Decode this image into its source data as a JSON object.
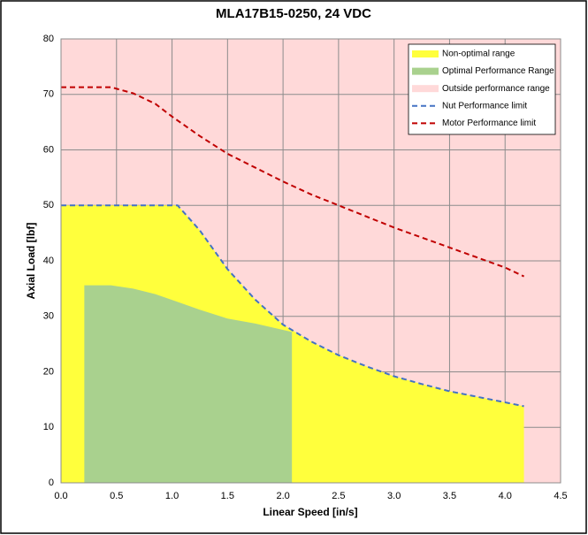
{
  "chart_data": {
    "type": "area",
    "title": "MLA17B15-0250, 24 VDC",
    "x_label": "Linear Speed [in/s]",
    "y_label": "Axial Load [lbf]",
    "xlim": [
      0,
      4.5
    ],
    "ylim": [
      0,
      80
    ],
    "xticks": [
      {
        "value": 0,
        "label": "0.0"
      },
      0.5,
      {
        "value": 1,
        "label": "1.0"
      },
      1.5,
      {
        "value": 2,
        "label": "2.0"
      },
      2.5,
      {
        "value": 3,
        "label": "3.0"
      },
      3.5,
      {
        "value": 4,
        "label": "4.0"
      },
      4.5
    ],
    "yticks": [
      0,
      10,
      20,
      30,
      40,
      50,
      60,
      70,
      80
    ],
    "grid": true,
    "legend": "top-right",
    "series": [
      {
        "name": "Non-optimal range",
        "kind": "area",
        "color": "#ffff3c",
        "x": [
          0,
          1.05,
          1.25,
          1.5,
          1.75,
          2.0,
          2.25,
          2.5,
          2.75,
          3.0,
          3.25,
          3.5,
          3.75,
          4.0,
          4.17
        ],
        "values": [
          50,
          50,
          45.5,
          38.5,
          33,
          28.5,
          25.5,
          23,
          21,
          19.2,
          17.8,
          16.5,
          15.5,
          14.5,
          13.8
        ]
      },
      {
        "name": "Optimal Performance Range",
        "kind": "area",
        "color": "#a9d18e",
        "x": [
          0.21,
          0.45,
          0.65,
          0.85,
          1.05,
          1.25,
          1.5,
          1.75,
          2.08
        ],
        "values": [
          35.6,
          35.6,
          35,
          34,
          32.6,
          31.2,
          29.6,
          28.7,
          27.2
        ]
      },
      {
        "name": "Outside performance range",
        "kind": "area",
        "color": "#ffd9d9",
        "x": [
          0,
          4.5
        ],
        "values": [
          80,
          80
        ]
      },
      {
        "name": "Nut Performance limit",
        "kind": "line",
        "color": "#4472c4",
        "dash": "6 4",
        "x": [
          0,
          1.05,
          1.25,
          1.5,
          1.75,
          2.0,
          2.25,
          2.5,
          2.75,
          3.0,
          3.25,
          3.5,
          3.75,
          4.0,
          4.17
        ],
        "values": [
          50,
          50,
          45.5,
          38.5,
          33,
          28.5,
          25.5,
          23,
          21,
          19.2,
          17.8,
          16.5,
          15.5,
          14.5,
          13.8
        ]
      },
      {
        "name": "Motor Performance limit",
        "kind": "line",
        "color": "#c00000",
        "dash": "6 4",
        "x": [
          0,
          0.45,
          0.65,
          0.85,
          1.0,
          1.25,
          1.5,
          1.75,
          2.0,
          2.25,
          2.5,
          2.75,
          3.0,
          3.25,
          3.5,
          3.75,
          4.0,
          4.17
        ],
        "values": [
          71.3,
          71.3,
          70.2,
          68.3,
          66,
          62.5,
          59.3,
          56.8,
          54.3,
          52,
          50,
          48,
          46,
          44.2,
          42.4,
          40.6,
          38.8,
          37.2
        ]
      }
    ]
  }
}
